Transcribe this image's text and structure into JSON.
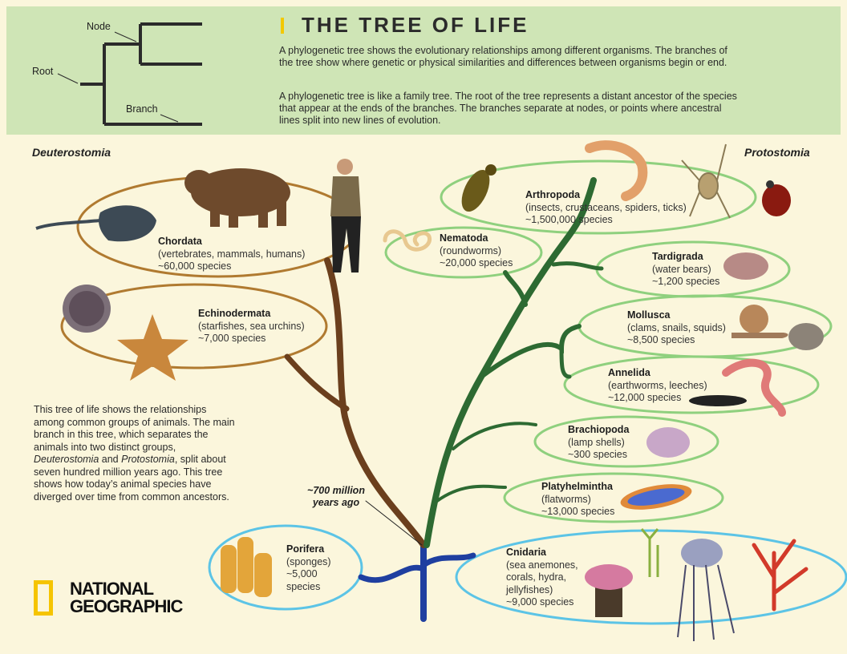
{
  "header": {
    "title": "THE TREE OF LIFE",
    "paragraph1": "A phylogenetic tree shows the evolutionary relationships among different organisms. The branches of the tree show where genetic or physical similarities and differences between organisms begin or end.",
    "paragraph2": "A phylogenetic tree is like a family tree. The root of the tree represents a distant ancestor of the species that appear at the ends of the branches. The branches separate at nodes, or points where ancestral lines split into new lines of evolution.",
    "diagram_labels": {
      "node": "Node",
      "root": "Root",
      "branch": "Branch"
    }
  },
  "sides": {
    "left": "Deuterostomia",
    "right": "Protostomia"
  },
  "groups": {
    "chordata": {
      "name": "Chordata",
      "desc": "(vertebrates, mammals, humans)",
      "count": "~60,000 species"
    },
    "echinodermata": {
      "name": "Echinodermata",
      "desc": "(starfishes, sea urchins)",
      "count": "~7,000 species"
    },
    "arthropoda": {
      "name": "Arthropoda",
      "desc": "(insects, crustaceans, spiders, ticks)",
      "count": "~1,500,000 species"
    },
    "nematoda": {
      "name": "Nematoda",
      "desc": "(roundworms)",
      "count": "~20,000 species"
    },
    "tardigrada": {
      "name": "Tardigrada",
      "desc": "(water bears)",
      "count": "~1,200 species"
    },
    "mollusca": {
      "name": "Mollusca",
      "desc": "(clams, snails, squids)",
      "count": "~8,500 species"
    },
    "annelida": {
      "name": "Annelida",
      "desc": "(earthworms, leeches)",
      "count": "~12,000 species"
    },
    "brachiopoda": {
      "name": "Brachiopoda",
      "desc": "(lamp shells)",
      "count": "~300 species"
    },
    "platyhelmintha": {
      "name": "Platyhelmintha",
      "desc": "(flatworms)",
      "count": "~13,000 species"
    },
    "porifera": {
      "name": "Porifera",
      "desc1": "(sponges)",
      "count1": "~5,000",
      "count2": "species"
    },
    "cnidaria": {
      "name": "Cnidaria",
      "desc1": "(sea anemones,",
      "desc2": "corals, hydra,",
      "desc3": "jellyfishes)",
      "count": "~9,000 species"
    }
  },
  "split_annotation": {
    "line1": "~700 million",
    "line2": "years ago"
  },
  "summary_parts": {
    "a": "This tree of life shows the relationships among common groups of animals. The main branch in this tree, which separates the animals into two distinct groups, ",
    "b": "Deuterostomia",
    "c": " and ",
    "d": "Protostomia",
    "e": ", split about seven hundred million years ago. This tree shows how today’s animal species have diverged over time from common ancestors."
  },
  "logo": {
    "line1": "NATIONAL",
    "line2": "GEOGRAPHIC"
  },
  "colors": {
    "header_bg": "#cfe5b6",
    "page_bg": "#fbf6dc",
    "deuterostome": "#6b3f1d",
    "protostome": "#2d6a32",
    "root": "#1f3fa0",
    "accent": "#f5c400",
    "oval_brown": "#b07a30",
    "oval_green": "#8fd07e",
    "oval_blue": "#5cc4e6"
  }
}
